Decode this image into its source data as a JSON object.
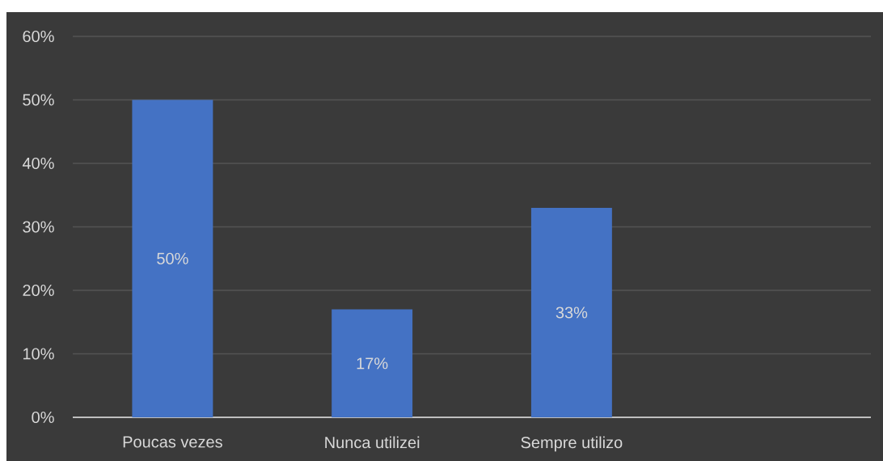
{
  "chart_data": {
    "type": "bar",
    "categories": [
      "Poucas vezes",
      "Nunca utilizei",
      "Sempre utilizo",
      null
    ],
    "values": [
      50,
      17,
      33,
      null
    ],
    "color": "#4472c4",
    "value_labels": [
      "50%",
      "17%",
      "33%",
      null
    ],
    "ylim": [
      0,
      60
    ],
    "yticks": [
      {
        "value": 0,
        "label": "0%"
      },
      {
        "value": 10,
        "label": "10%"
      },
      {
        "value": 20,
        "label": "20%"
      },
      {
        "value": 30,
        "label": "30%"
      },
      {
        "value": 40,
        "label": "40%"
      },
      {
        "value": 50,
        "label": "50%"
      },
      {
        "value": 60,
        "label": "60%"
      }
    ],
    "grid": "y"
  }
}
